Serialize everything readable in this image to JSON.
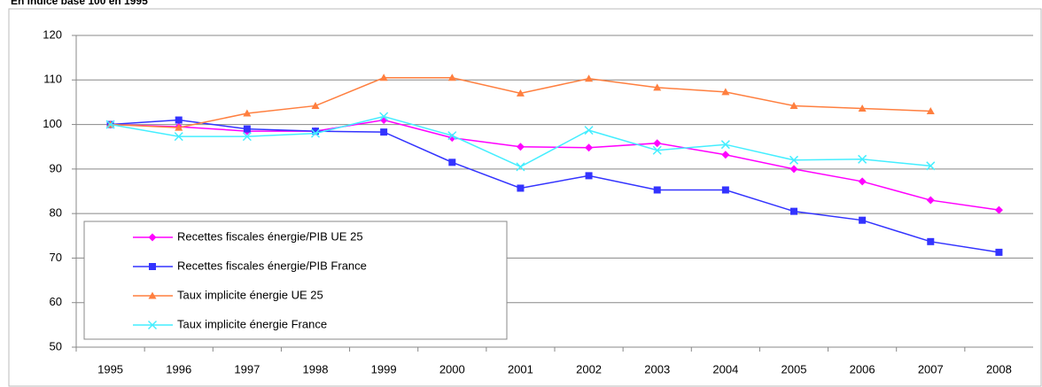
{
  "chart_data": {
    "type": "line",
    "title": "En indice base 100 en 1995",
    "categories": [
      "1995",
      "1996",
      "1997",
      "1998",
      "1999",
      "2000",
      "2001",
      "2002",
      "2003",
      "2004",
      "2005",
      "2006",
      "2007",
      "2008"
    ],
    "series": [
      {
        "name": "Recettes fiscales énergie/PIB UE 25",
        "color": "#ff00ff",
        "marker": "diamond",
        "values": [
          100,
          99.5,
          98.5,
          98.5,
          101,
          97,
          95,
          94.8,
          95.8,
          93.2,
          90,
          87.2,
          83,
          80.8
        ]
      },
      {
        "name": "Recettes fiscales énergie/PIB France",
        "color": "#3333ff",
        "marker": "square",
        "values": [
          100,
          101,
          99,
          98.5,
          98.3,
          91.5,
          85.7,
          88.5,
          85.3,
          85.3,
          80.5,
          78.5,
          73.7,
          71.3
        ]
      },
      {
        "name": "Taux implicite énergie UE 25",
        "color": "#ff7f3f",
        "marker": "triangle",
        "values": [
          100,
          99.3,
          102.5,
          104.2,
          110.5,
          110.5,
          107,
          110.3,
          108.3,
          107.3,
          104.2,
          103.6,
          103,
          null
        ]
      },
      {
        "name": "Taux implicite énergie France",
        "color": "#44eeff",
        "marker": "x",
        "values": [
          100,
          97.3,
          97.3,
          98,
          101.8,
          97.5,
          90.5,
          98.7,
          94.2,
          95.5,
          92,
          92.2,
          90.7,
          null
        ]
      }
    ],
    "ylim": [
      50,
      120
    ],
    "yticks": [
      50,
      60,
      70,
      80,
      90,
      100,
      110,
      120
    ],
    "grid": true,
    "legend": "lower-left"
  }
}
